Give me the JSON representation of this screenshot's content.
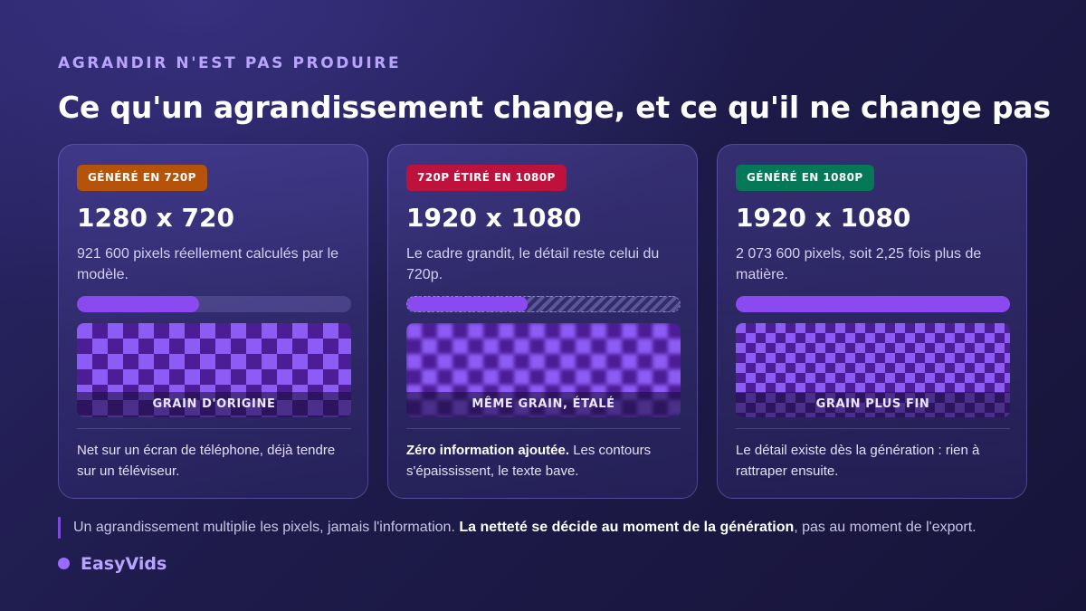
{
  "header": {
    "eyebrow": "AGRANDIR N'EST PAS PRODUIRE",
    "title": "Ce qu'un agrandissement change, et ce qu'il ne change pas"
  },
  "colors": {
    "accent": "#8b49f0",
    "grain_light": "#8d5cf5",
    "grain_dark": "#4c1d95",
    "badge_720p": "#b45309",
    "badge_stretched": "#be123c",
    "badge_1080p": "#047857"
  },
  "cards": [
    {
      "badge": "GÉNÉRÉ EN 720P",
      "resolution": "1280 x 720",
      "description": "921 600 pixels réellement calculés par le modèle.",
      "bar_fill": 0.444,
      "bar_style": "plain",
      "grain_label": "GRAIN D'ORIGINE",
      "grain_style": "sharp-coarse",
      "note_bold": "",
      "note": "Net sur un écran de téléphone, déjà tendre sur un téléviseur."
    },
    {
      "badge": "720P ÉTIRÉ EN 1080P",
      "resolution": "1920 x 1080",
      "description": "Le cadre grandit, le détail reste celui du 720p.",
      "bar_fill": 0.444,
      "bar_style": "striped",
      "grain_label": "MÊME GRAIN, ÉTALÉ",
      "grain_style": "blurred-coarse",
      "note_bold": "Zéro information ajoutée.",
      "note": "Les contours s'épaississent, le texte bave."
    },
    {
      "badge": "GÉNÉRÉ EN 1080P",
      "resolution": "1920 x 1080",
      "description": "2 073 600 pixels, soit 2,25 fois plus de matière.",
      "bar_fill": 1.0,
      "bar_style": "plain",
      "grain_label": "GRAIN PLUS FIN",
      "grain_style": "sharp-fine",
      "note_bold": "",
      "note": "Le détail existe dès la génération : rien à rattraper ensuite."
    }
  ],
  "footer": {
    "text_before": "Un agrandissement multiplie les pixels, jamais l'information.",
    "text_bold": "La netteté se décide au moment de la génération",
    "text_after": ", pas au moment de l'export."
  },
  "brand": {
    "name": "EasyVids"
  }
}
